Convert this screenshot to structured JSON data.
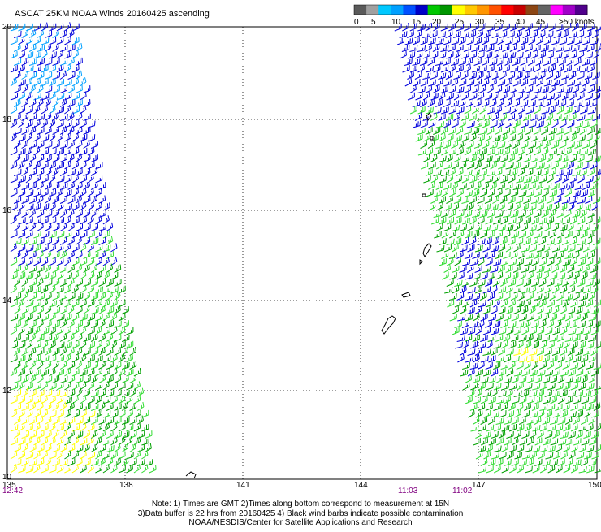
{
  "title": "ASCAT 25KM NOAA Winds 20160425 ascending",
  "legend": {
    "colors": [
      "#5a5a5a",
      "#a0a0a0",
      "#00c8ff",
      "#00a0ff",
      "#0050ff",
      "#0000c8",
      "#00c800",
      "#009600",
      "#ffff00",
      "#ffc800",
      "#ff9600",
      "#ff5000",
      "#ff0000",
      "#c80000",
      "#8c4614",
      "#646464",
      "#ff00ff",
      "#a000c8",
      "#50008c"
    ],
    "labels": [
      "0",
      "5",
      "10",
      "15",
      "20",
      "25",
      "30",
      "35",
      "40",
      "45",
      ">50 knots"
    ]
  },
  "axes": {
    "longitudes": [
      "135",
      "138",
      "141",
      "144",
      "147",
      "150"
    ],
    "latitudes": [
      "20",
      "18",
      "16",
      "14",
      "12",
      "10"
    ]
  },
  "times": {
    "left": "12:42",
    "mid1": "11:03",
    "mid2": "11:02"
  },
  "notes": {
    "line1": "Note: 1) Times are GMT  2)Times along bottom correspond to measurement at 15N",
    "line2": "3)Data buffer is 22 hrs from 20160425  4) Black wind barbs indicate possible contamination",
    "line3": "NOAA/NESDIS/Center for Satellite Applications and Research"
  },
  "wind_colors": {
    "yellow": "#ffff00",
    "light_green": "#32dc32",
    "dark_green": "#00a000",
    "blue": "#0000dc",
    "light_blue": "#00a0ff",
    "black": "#000000"
  },
  "wind_direction": "easterly / north-easterly trade winds"
}
